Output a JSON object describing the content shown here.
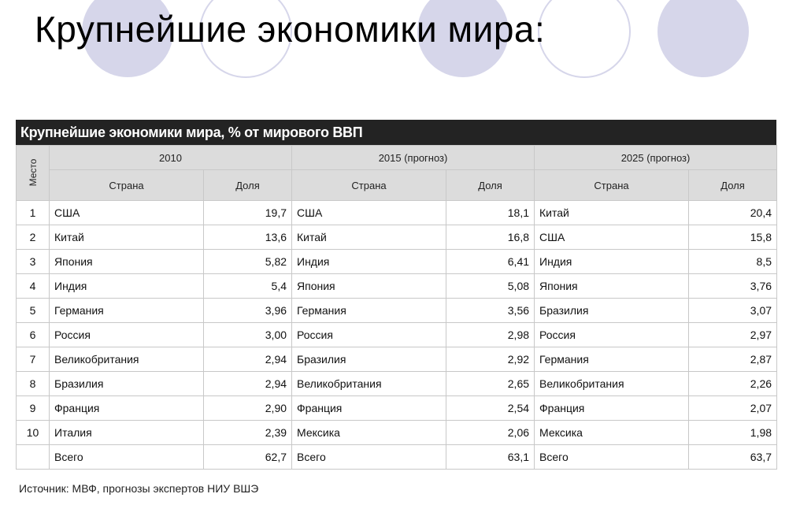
{
  "slide": {
    "title": "Крупнейшие экономики мира:"
  },
  "table": {
    "title": "Крупнейшие экономики мира, % от мирового ВВП",
    "place_header": "Место",
    "periods": [
      "2010",
      "2015 (прогноз)",
      "2025 (прогноз)"
    ],
    "country_header": "Страна",
    "share_header": "Доля",
    "rows": [
      {
        "place": "1",
        "c2010": "США",
        "s2010": "19,7",
        "c2015": "США",
        "s2015": "18,1",
        "c2025": "Китай",
        "s2025": "20,4"
      },
      {
        "place": "2",
        "c2010": "Китай",
        "s2010": "13,6",
        "c2015": "Китай",
        "s2015": "16,8",
        "c2025": "США",
        "s2025": "15,8"
      },
      {
        "place": "3",
        "c2010": "Япония",
        "s2010": "5,82",
        "c2015": "Индия",
        "s2015": "6,41",
        "c2025": "Индия",
        "s2025": "8,5"
      },
      {
        "place": "4",
        "c2010": "Индия",
        "s2010": "5,4",
        "c2015": "Япония",
        "s2015": "5,08",
        "c2025": "Япония",
        "s2025": "3,76"
      },
      {
        "place": "5",
        "c2010": "Германия",
        "s2010": "3,96",
        "c2015": "Германия",
        "s2015": "3,56",
        "c2025": "Бразилия",
        "s2025": "3,07"
      },
      {
        "place": "6",
        "c2010": "Россия",
        "s2010": "3,00",
        "c2015": "Россия",
        "s2015": "2,98",
        "c2025": "Россия",
        "s2025": "2,97"
      },
      {
        "place": "7",
        "c2010": "Великобритания",
        "s2010": "2,94",
        "c2015": "Бразилия",
        "s2015": "2,92",
        "c2025": "Германия",
        "s2025": "2,87"
      },
      {
        "place": "8",
        "c2010": "Бразилия",
        "s2010": "2,94",
        "c2015": "Великобритания",
        "s2015": "2,65",
        "c2025": "Великобритания",
        "s2025": "2,26"
      },
      {
        "place": "9",
        "c2010": "Франция",
        "s2010": "2,90",
        "c2015": "Франция",
        "s2015": "2,54",
        "c2025": "Франция",
        "s2025": "2,07"
      },
      {
        "place": "10",
        "c2010": "Италия",
        "s2010": "2,39",
        "c2015": "Мексика",
        "s2015": "2,06",
        "c2025": "Мексика",
        "s2025": "1,98"
      }
    ],
    "total": {
      "label": "Всего",
      "s2010": "62,7",
      "s2015": "63,1",
      "s2025": "63,7"
    }
  },
  "source": "Источник: МВФ,  прогнозы экспертов НИУ ВШЭ",
  "colors": {
    "title_bar": "#232323",
    "header_bg": "#dcdcdc",
    "circle_fill": "#d6d6ea",
    "circle_stroke": "#d6d6ea"
  }
}
